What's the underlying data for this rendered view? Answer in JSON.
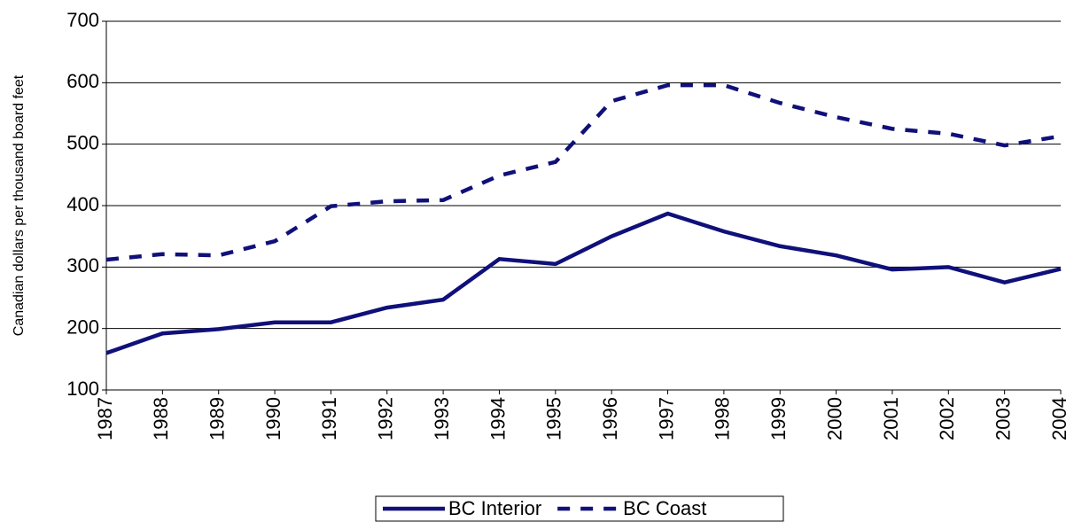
{
  "chart_data": {
    "type": "line",
    "ylabel": "Canadian dollars per thousand board feet",
    "categories": [
      "1987",
      "1988",
      "1989",
      "1990",
      "1991",
      "1992",
      "1993",
      "1994",
      "1995",
      "1996",
      "1997",
      "1998",
      "1999",
      "2000",
      "2001",
      "2002",
      "2003",
      "2004"
    ],
    "series": [
      {
        "name": "BC Interior",
        "color": "#10107a",
        "dash": "solid",
        "values": [
          160,
          192,
          199,
          210,
          210,
          234,
          247,
          313,
          305,
          350,
          387,
          358,
          334,
          319,
          296,
          300,
          275,
          297
        ]
      },
      {
        "name": "BC Coast",
        "color": "#10107a",
        "dash": "dashed",
        "values": [
          312,
          321,
          319,
          342,
          399,
          407,
          409,
          449,
          471,
          570,
          596,
          596,
          567,
          544,
          525,
          517,
          498,
          513
        ]
      }
    ],
    "ylim": [
      100,
      700
    ],
    "yticks": [
      100,
      200,
      300,
      400,
      500,
      600,
      700
    ],
    "grid": true,
    "legend": "bottom"
  }
}
